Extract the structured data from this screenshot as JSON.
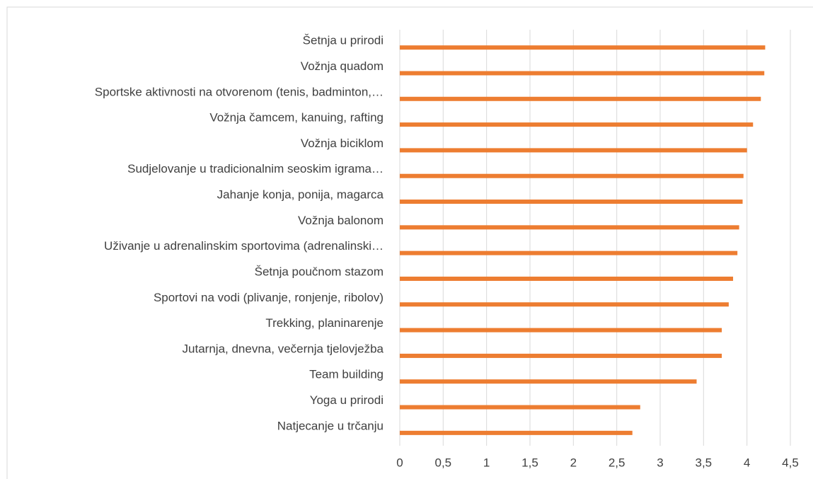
{
  "chart_data": {
    "type": "barh",
    "categories": [
      "Šetnja u prirodi",
      "Vožnja quadom",
      "Sportske aktivnosti na otvorenom (tenis, badminton,…",
      "Vožnja čamcem, kanuing, rafting",
      "Vožnja biciklom",
      "Sudjelovanje u tradicionalnim seoskim igrama…",
      "Jahanje konja, ponija, magarca",
      "Vožnja balonom",
      "Uživanje u adrenalinskim sportovima (adrenalinski…",
      "Šetnja poučnom stazom",
      "Sportovi na vodi (plivanje, ronjenje, ribolov)",
      "Trekking, planinarenje",
      "Jutarnja, dnevna, večernja tjelovježba",
      "Team building",
      "Yoga u prirodi",
      "Natjecanje u trčanju"
    ],
    "values": [
      4.21,
      4.2,
      4.16,
      4.07,
      4.0,
      3.96,
      3.95,
      3.91,
      3.89,
      3.84,
      3.79,
      3.71,
      3.71,
      3.42,
      2.77,
      2.68
    ],
    "color": "#ed7d31",
    "xlim": [
      0,
      4.5
    ],
    "xticks": [
      0,
      {
        "value": 0.5,
        "label": "0,5"
      },
      1,
      {
        "value": 1.5,
        "label": "1,5"
      },
      2,
      {
        "value": 2.5,
        "label": "2,5"
      },
      3,
      {
        "value": 3.5,
        "label": "3,5"
      },
      4,
      {
        "value": 4.5,
        "label": "4,5"
      }
    ],
    "grid": true
  }
}
